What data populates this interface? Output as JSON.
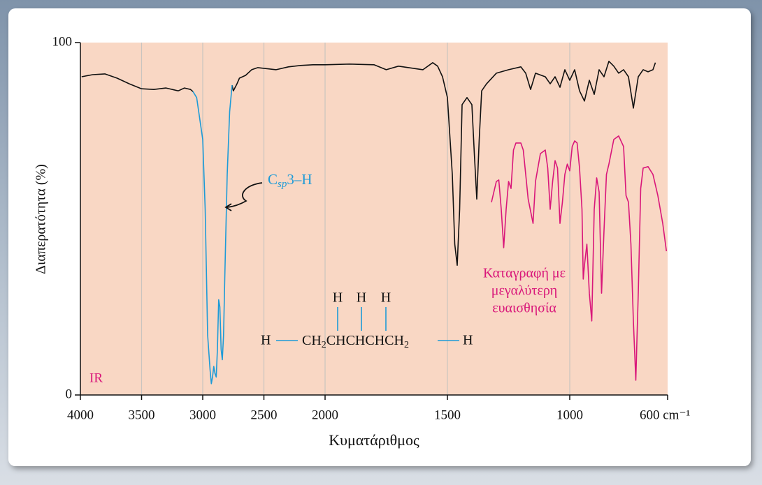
{
  "chart_data": {
    "type": "line",
    "xlabel": "Κυματάριθμος",
    "ylabel": "Διαπερατότητα (%)",
    "xlim": [
      4000,
      600
    ],
    "ylim": [
      0,
      100
    ],
    "x_scale_break": 2000,
    "xticks": [
      4000,
      3500,
      3000,
      2500,
      2000,
      1500,
      1000,
      {
        "value": 600,
        "label": "600 cm⁻¹"
      }
    ],
    "yticks": [
      0,
      100
    ],
    "grid": true,
    "series": [
      {
        "color": "#111111",
        "x": [
          3990,
          3900,
          3800,
          3700,
          3600,
          3500,
          3400,
          3300,
          3200,
          3150,
          3100,
          3080,
          2900,
          2760,
          2750,
          2720,
          2700,
          2650,
          2600,
          2550,
          2500,
          2400,
          2300,
          2200,
          2100,
          2000,
          1900,
          1800,
          1750,
          1700,
          1600,
          1560,
          1540,
          1520,
          1500,
          1480,
          1470,
          1460,
          1450,
          1440,
          1420,
          1400,
          1390,
          1380,
          1370,
          1360,
          1340,
          1300,
          1250,
          1200,
          1180,
          1160,
          1140,
          1100,
          1080,
          1060,
          1040,
          1020,
          1000,
          980,
          960,
          940,
          920,
          900,
          880,
          860,
          840,
          820,
          800,
          780,
          760,
          740,
          720,
          700,
          680,
          660,
          650
        ],
        "values": [
          90.3,
          90.9,
          91.1,
          89.9,
          88.3,
          86.9,
          86.7,
          87.1,
          86.3,
          87.1,
          86.7,
          86.1,
          null,
          87.9,
          86.3,
          88.3,
          89.9,
          90.7,
          92.3,
          92.9,
          92.7,
          92.3,
          93.1,
          93.5,
          93.7,
          93.7,
          93.9,
          93.7,
          92.3,
          93.3,
          92.3,
          94.3,
          93.3,
          90.3,
          84.4,
          62.6,
          42.8,
          36.8,
          52.7,
          82.4,
          84.4,
          82.4,
          68.5,
          55.6,
          72.5,
          86.3,
          88.3,
          91.3,
          92.3,
          93.1,
          91.3,
          86.7,
          91.3,
          90.3,
          88.3,
          90.3,
          87.3,
          92.3,
          89.3,
          92.3,
          86.3,
          83.4,
          89.3,
          85.3,
          92.3,
          90.3,
          94.7,
          93.3,
          91.3,
          92.3,
          90.3,
          81.4,
          90.3,
          92.3,
          91.7,
          92.3,
          94.3
        ]
      },
      {
        "color": "#1e9bd7",
        "x": [
          3080,
          3050,
          3000,
          2980,
          2960,
          2940,
          2930,
          2920,
          2910,
          2900,
          2890,
          2880,
          2870,
          2860,
          2850,
          2840,
          2830,
          2820,
          2800,
          2780,
          2760
        ],
        "values": [
          86.1,
          84.4,
          72.5,
          52.7,
          17,
          7.1,
          3.2,
          5.1,
          8.1,
          6.1,
          5.1,
          13,
          27,
          25,
          13,
          10,
          17,
          33,
          62.6,
          80.4,
          87.9
        ]
      },
      {
        "color": "#d9177a",
        "x": [
          1320,
          1300,
          1290,
          1280,
          1270,
          1260,
          1250,
          1240,
          1230,
          1220,
          1200,
          1190,
          1180,
          1170,
          1150,
          1140,
          1120,
          1100,
          1090,
          1080,
          1070,
          1060,
          1050,
          1040,
          1030,
          1020,
          1010,
          1000,
          990,
          980,
          970,
          960,
          950,
          945,
          940,
          930,
          920,
          910,
          900,
          890,
          880,
          870,
          860,
          850,
          840,
          820,
          800,
          780,
          770,
          760,
          750,
          740,
          730,
          720,
          710,
          700,
          680,
          660,
          640,
          620,
          605
        ],
        "values": [
          54.7,
          60.6,
          61,
          52.7,
          41.8,
          52.7,
          60.6,
          58.6,
          69.5,
          71.5,
          71.5,
          69.5,
          62.6,
          55.6,
          48.7,
          60.6,
          68.5,
          69.5,
          64.4,
          52.7,
          60.6,
          66.5,
          64.4,
          48.7,
          54.7,
          62.6,
          65.5,
          63.6,
          70.5,
          72.1,
          71.5,
          64.4,
          52.7,
          32.9,
          36.8,
          42.8,
          28.9,
          21,
          52.7,
          61.6,
          57.6,
          28.9,
          46.7,
          62.6,
          65.5,
          72.5,
          73.5,
          70.5,
          56.6,
          54.7,
          42.8,
          21,
          4.2,
          28.9,
          58.6,
          64.4,
          64.8,
          62.6,
          56.6,
          48.7,
          40.8
        ]
      }
    ],
    "annotations": {
      "band": {
        "c": "C",
        "sub": "sp",
        "rest": "3–H"
      },
      "sensitivity": [
        "Καταγραφή με",
        "μεγαλύτερη",
        "ευαισθησία"
      ],
      "method": "IR",
      "molecule": {
        "top": [
          "H",
          "H",
          "H"
        ],
        "left": "H",
        "ch": "CH",
        "sub1": "2",
        "mid": "CHCHCHCH",
        "sub2": "2",
        "right": "H"
      }
    }
  }
}
